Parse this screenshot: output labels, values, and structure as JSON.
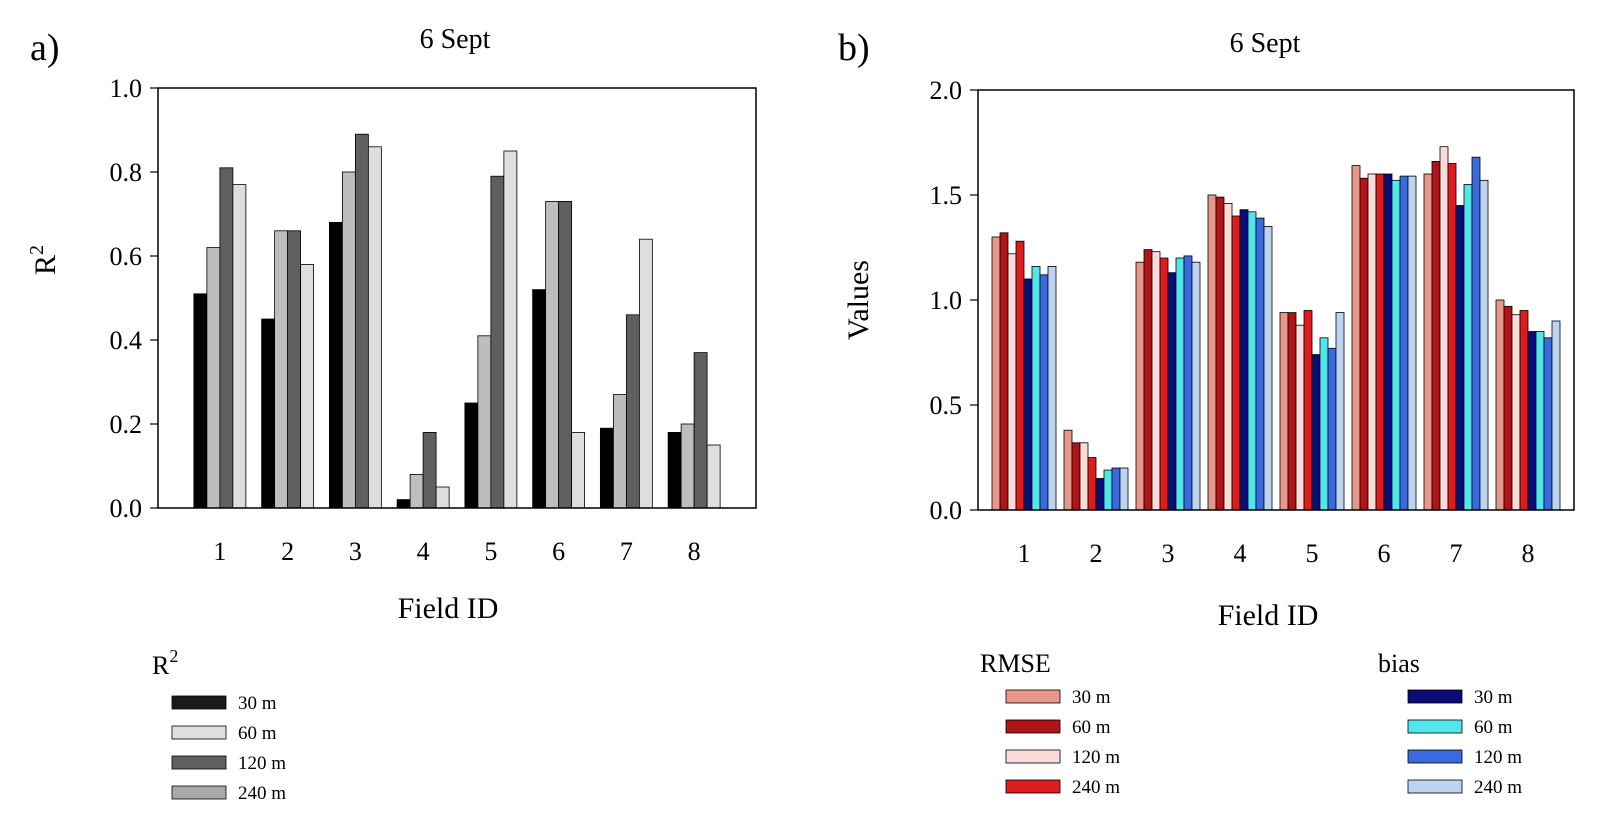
{
  "chart_data": [
    {
      "panel": "a)",
      "type": "bar",
      "title": "6 Sept",
      "xlabel": "Field ID",
      "ylabel": "R2",
      "ylim": [
        0,
        1.0
      ],
      "yticks": [
        "0.0",
        "0.2",
        "0.4",
        "0.6",
        "0.8",
        "1.0"
      ],
      "categories": [
        "1",
        "2",
        "3",
        "4",
        "5",
        "6",
        "7",
        "8"
      ],
      "legend_title": "R2",
      "legend_position": "bottom-left",
      "grid": false,
      "series": [
        {
          "name": "30 m",
          "color": "#000000",
          "values": [
            0.51,
            0.45,
            0.68,
            0.02,
            0.25,
            0.52,
            0.19,
            0.18
          ]
        },
        {
          "name": "60 m",
          "color": "#bdbdbd",
          "values": [
            0.62,
            0.66,
            0.8,
            0.08,
            0.41,
            0.73,
            0.27,
            0.2
          ]
        },
        {
          "name": "120 m",
          "color": "#5f5f5f",
          "values": [
            0.81,
            0.66,
            0.89,
            0.18,
            0.79,
            0.73,
            0.46,
            0.37
          ]
        },
        {
          "name": "240 m",
          "color": "#dedede",
          "values": [
            0.77,
            0.58,
            0.86,
            0.05,
            0.85,
            0.18,
            0.64,
            0.15
          ]
        }
      ],
      "legend_entries": [
        {
          "name": "30 m",
          "color": "#1a1a1a"
        },
        {
          "name": "60 m",
          "color": "#dedede"
        },
        {
          "name": "120 m",
          "color": "#5f5f5f"
        },
        {
          "name": "240 m",
          "color": "#a9a9a9"
        }
      ]
    },
    {
      "panel": "b)",
      "type": "bar",
      "title": "6 Sept",
      "xlabel": "Field ID",
      "ylabel": "Values",
      "ylim": [
        0,
        2.0
      ],
      "yticks": [
        "0.0",
        "0.5",
        "1.0",
        "1.5",
        "2.0"
      ],
      "categories": [
        "1",
        "2",
        "3",
        "4",
        "5",
        "6",
        "7",
        "8"
      ],
      "legend_position": "bottom",
      "grid": false,
      "groups": [
        {
          "title": "RMSE",
          "series": [
            {
              "name": "30 m",
              "color": "#e8978a",
              "values": [
                1.3,
                0.38,
                1.18,
                1.5,
                0.94,
                1.64,
                1.6,
                1.0
              ]
            },
            {
              "name": "60 m",
              "color": "#b01416",
              "values": [
                1.32,
                0.32,
                1.24,
                1.49,
                0.94,
                1.58,
                1.66,
                0.97
              ]
            },
            {
              "name": "120 m",
              "color": "#fbdada",
              "values": [
                1.22,
                0.32,
                1.23,
                1.46,
                0.88,
                1.6,
                1.73,
                0.93
              ]
            },
            {
              "name": "240 m",
              "color": "#de1c1c",
              "values": [
                1.28,
                0.25,
                1.2,
                1.4,
                0.95,
                1.6,
                1.65,
                0.95
              ]
            }
          ]
        },
        {
          "title": "bias",
          "series": [
            {
              "name": "30 m",
              "color": "#0c0c78",
              "values": [
                1.1,
                0.15,
                1.13,
                1.43,
                0.74,
                1.6,
                1.45,
                0.85
              ]
            },
            {
              "name": "60 m",
              "color": "#4fe7ec",
              "values": [
                1.16,
                0.19,
                1.2,
                1.42,
                0.82,
                1.57,
                1.55,
                0.85
              ]
            },
            {
              "name": "120 m",
              "color": "#3b69e0",
              "values": [
                1.12,
                0.2,
                1.21,
                1.39,
                0.77,
                1.59,
                1.68,
                0.82
              ]
            },
            {
              "name": "240 m",
              "color": "#bcd4f0",
              "values": [
                1.16,
                0.2,
                1.18,
                1.35,
                0.94,
                1.59,
                1.57,
                0.9
              ]
            }
          ]
        }
      ]
    }
  ]
}
